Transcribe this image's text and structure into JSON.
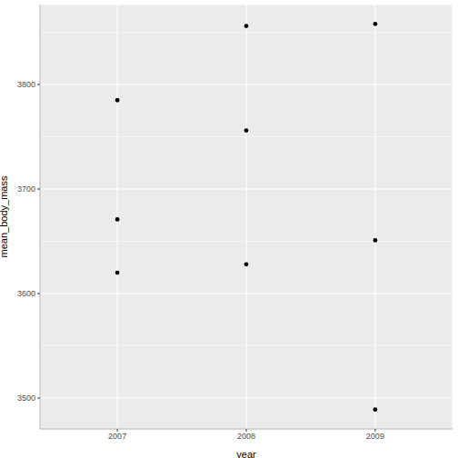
{
  "chart_data": {
    "type": "scatter",
    "x_label": "year",
    "y_label": "mean_body_mass",
    "x": [
      2007,
      2007,
      2007,
      2008,
      2008,
      2008,
      2009,
      2009,
      2009
    ],
    "values": [
      3785,
      3671,
      3620,
      3856,
      3756,
      3628,
      3858,
      3651,
      3489
    ],
    "color": "#000000",
    "xlim": [
      2006.4,
      2009.6
    ],
    "ylim": [
      3470.5,
      3876.5
    ],
    "xticks": [
      2007,
      2008,
      2009
    ],
    "yticks": [
      3500,
      3600,
      3700,
      3800
    ],
    "grid": true
  }
}
